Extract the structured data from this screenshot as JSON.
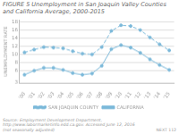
{
  "chart_data": {
    "type": "line",
    "title": "FIGURE 5  Unemployment in San Joaquin Valley Counties and California Average, 2000-2015",
    "y_label": "UNEMPLOYMENT RATE",
    "categories": [
      "'00",
      "'01",
      "'02",
      "'03",
      "'04",
      "'05",
      "'06",
      "'07",
      "'08",
      "'09",
      "'10",
      "'11",
      "'12",
      "'13",
      "'14",
      "'15"
    ],
    "series": [
      {
        "name": "SAN JOAQUIN COUNTY",
        "color": "#7ab8d9",
        "line_style": "dashed",
        "marker": "point",
        "values": [
          10.5,
          11.2,
          11.8,
          11.7,
          11.5,
          10.8,
          10.2,
          10.0,
          11.8,
          15.8,
          17.2,
          17.0,
          16.0,
          14.2,
          12.5,
          11.0
        ]
      },
      {
        "name": "CALIFORNIA",
        "color": "#7ab8d9",
        "line_style": "solid",
        "marker": "point",
        "values": [
          5.0,
          6.0,
          6.7,
          6.7,
          6.2,
          5.4,
          5.0,
          5.3,
          7.2,
          11.3,
          12.3,
          11.7,
          10.4,
          8.8,
          7.4,
          6.2
        ]
      }
    ],
    "ylim": [
      3,
      18.5
    ],
    "yticks": [
      3,
      6,
      8,
      10,
      12,
      14,
      16,
      18
    ],
    "grid": true,
    "legend": "bottom",
    "annotations": [
      "Source: Employment Development Department, http://www.labormarketinfo.edd.ca.gov. Accessed June 12, 2016\n(not seasonally adjusted)",
      "NEXT 112"
    ]
  }
}
